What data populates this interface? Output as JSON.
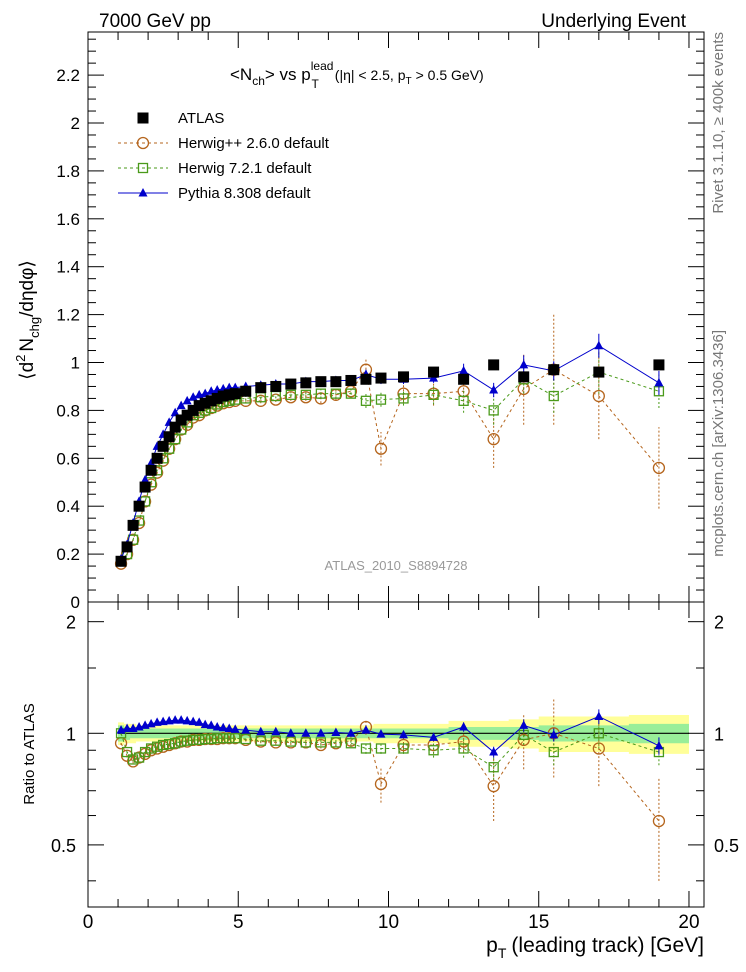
{
  "header": {
    "energy": "7000 GeV pp",
    "process": "Underlying Event"
  },
  "side_labels": {
    "rivet": "Rivet 3.1.10, ≥ 400k events",
    "mcplots": "mcplots.cern.ch [arXiv:1306.3436]"
  },
  "title": {
    "prefix": "<N",
    "sub1": "ch",
    "mid": "> vs p",
    "sup": "lead",
    "sub2": "T",
    "cut1": "(|η| < 2.5, p",
    "sub3": "T",
    "cut2": "> 0.5 GeV)"
  },
  "watermark": "ATLAS_2010_S8894728",
  "ylabel_main": {
    "a": "⟨d",
    "sup": "2",
    "b": "N",
    "sub": "chg",
    "c": "/dηdφ⟩"
  },
  "ylabel_ratio": "Ratio to ATLAS",
  "xlabel": {
    "a": "p",
    "sub": "T",
    "b": "(leading track) [GeV]"
  },
  "chart_data": [
    {
      "type": "scatter",
      "panel": "main",
      "xlim": [
        0,
        20.5
      ],
      "ylim": [
        0,
        2.38
      ],
      "x_ticks": [
        0,
        5,
        10,
        15,
        20
      ],
      "y_ticks": [
        "0",
        "0.2",
        "0.4",
        "0.6",
        "0.8",
        "1",
        "1.2",
        "1.4",
        "1.6",
        "1.8",
        "2",
        "2.2"
      ],
      "x": [
        1.1,
        1.3,
        1.5,
        1.7,
        1.9,
        2.1,
        2.3,
        2.5,
        2.7,
        2.9,
        3.1,
        3.3,
        3.5,
        3.7,
        3.9,
        4.1,
        4.3,
        4.5,
        4.7,
        4.9,
        5.25,
        5.75,
        6.25,
        6.75,
        7.25,
        7.75,
        8.25,
        8.75,
        9.25,
        9.75,
        10.5,
        11.5,
        12.5,
        13.5,
        14.5,
        15.5,
        17.0,
        19.0
      ],
      "series": [
        {
          "name": "ATLAS",
          "color": "#000000",
          "marker": "filled-square",
          "values": [
            0.17,
            0.23,
            0.32,
            0.4,
            0.48,
            0.55,
            0.6,
            0.65,
            0.69,
            0.73,
            0.76,
            0.78,
            0.8,
            0.82,
            0.83,
            0.84,
            0.85,
            0.86,
            0.865,
            0.87,
            0.88,
            0.895,
            0.9,
            0.91,
            0.915,
            0.92,
            0.92,
            0.925,
            0.93,
            0.935,
            0.94,
            0.96,
            0.93,
            0.99,
            0.94,
            0.97,
            0.96,
            0.99
          ]
        },
        {
          "name": "Herwig++ 2.6.0 default",
          "color": "#b5651d",
          "marker": "open-circle",
          "values": [
            0.16,
            0.2,
            0.26,
            0.33,
            0.42,
            0.49,
            0.54,
            0.59,
            0.64,
            0.68,
            0.72,
            0.74,
            0.77,
            0.78,
            0.8,
            0.81,
            0.82,
            0.83,
            0.835,
            0.84,
            0.84,
            0.84,
            0.845,
            0.855,
            0.855,
            0.85,
            0.865,
            0.88,
            0.97,
            0.64,
            0.87,
            0.87,
            0.88,
            0.68,
            0.89,
            0.97,
            0.86,
            0.56
          ],
          "errors": [
            0.005,
            0.005,
            0.005,
            0.005,
            0.005,
            0.005,
            0.005,
            0.005,
            0.005,
            0.005,
            0.005,
            0.005,
            0.005,
            0.005,
            0.005,
            0.005,
            0.005,
            0.005,
            0.005,
            0.005,
            0.01,
            0.01,
            0.01,
            0.015,
            0.015,
            0.02,
            0.02,
            0.03,
            0.05,
            0.07,
            0.04,
            0.05,
            0.06,
            0.12,
            0.15,
            0.23,
            0.18,
            0.17
          ]
        },
        {
          "name": "Herwig 7.2.1 default",
          "color": "#4a9a1a",
          "marker": "open-square",
          "values": [
            0.17,
            0.2,
            0.26,
            0.34,
            0.42,
            0.5,
            0.55,
            0.6,
            0.64,
            0.68,
            0.72,
            0.75,
            0.78,
            0.79,
            0.8,
            0.81,
            0.825,
            0.835,
            0.84,
            0.845,
            0.85,
            0.855,
            0.86,
            0.865,
            0.865,
            0.87,
            0.87,
            0.87,
            0.84,
            0.845,
            0.85,
            0.865,
            0.84,
            0.8,
            0.93,
            0.86,
            0.96,
            0.88
          ],
          "errors": [
            0.005,
            0.005,
            0.005,
            0.005,
            0.005,
            0.005,
            0.005,
            0.005,
            0.005,
            0.005,
            0.005,
            0.005,
            0.005,
            0.005,
            0.005,
            0.005,
            0.005,
            0.005,
            0.005,
            0.005,
            0.01,
            0.01,
            0.01,
            0.01,
            0.015,
            0.02,
            0.02,
            0.02,
            0.03,
            0.03,
            0.03,
            0.04,
            0.05,
            0.06,
            0.06,
            0.07,
            0.09,
            0.07
          ]
        },
        {
          "name": "Pythia 8.308 default",
          "color": "#0000cc",
          "marker": "filled-triangle",
          "values": [
            0.18,
            0.24,
            0.33,
            0.42,
            0.51,
            0.58,
            0.65,
            0.7,
            0.75,
            0.79,
            0.82,
            0.84,
            0.855,
            0.865,
            0.87,
            0.88,
            0.885,
            0.89,
            0.895,
            0.895,
            0.9,
            0.905,
            0.91,
            0.91,
            0.92,
            0.92,
            0.925,
            0.925,
            0.95,
            0.93,
            0.93,
            0.935,
            0.965,
            0.885,
            0.99,
            0.965,
            1.07,
            0.915
          ],
          "errors": [
            0.005,
            0.005,
            0.005,
            0.005,
            0.005,
            0.005,
            0.005,
            0.005,
            0.005,
            0.005,
            0.005,
            0.005,
            0.005,
            0.005,
            0.005,
            0.005,
            0.005,
            0.005,
            0.005,
            0.005,
            0.005,
            0.005,
            0.01,
            0.01,
            0.01,
            0.01,
            0.01,
            0.015,
            0.02,
            0.02,
            0.02,
            0.02,
            0.03,
            0.03,
            0.04,
            0.04,
            0.05,
            0.05
          ]
        }
      ]
    },
    {
      "type": "scatter",
      "panel": "ratio",
      "xlim": [
        0,
        20.5
      ],
      "ylim": [
        0.34,
        2.26
      ],
      "x_ticks": [
        0,
        5,
        10,
        15,
        20
      ],
      "y_ticks": [
        "0.5",
        "1",
        "2"
      ],
      "x": [
        1.1,
        1.3,
        1.5,
        1.7,
        1.9,
        2.1,
        2.3,
        2.5,
        2.7,
        2.9,
        3.1,
        3.3,
        3.5,
        3.7,
        3.9,
        4.1,
        4.3,
        4.5,
        4.7,
        4.9,
        5.25,
        5.75,
        6.25,
        6.75,
        7.25,
        7.75,
        8.25,
        8.75,
        9.25,
        9.75,
        10.5,
        11.5,
        12.5,
        13.5,
        14.5,
        15.5,
        17.0,
        19.0
      ],
      "band_green": [
        0.05,
        0.04,
        0.03,
        0.03,
        0.03,
        0.03,
        0.03,
        0.03,
        0.03,
        0.03,
        0.03,
        0.03,
        0.03,
        0.03,
        0.03,
        0.03,
        0.03,
        0.03,
        0.03,
        0.03,
        0.03,
        0.03,
        0.03,
        0.03,
        0.03,
        0.03,
        0.03,
        0.03,
        0.03,
        0.03,
        0.03,
        0.03,
        0.04,
        0.04,
        0.04,
        0.05,
        0.05,
        0.06
      ],
      "band_yellow": [
        0.07,
        0.06,
        0.06,
        0.05,
        0.05,
        0.05,
        0.05,
        0.05,
        0.05,
        0.05,
        0.05,
        0.05,
        0.05,
        0.05,
        0.05,
        0.05,
        0.05,
        0.05,
        0.05,
        0.05,
        0.05,
        0.05,
        0.05,
        0.05,
        0.05,
        0.05,
        0.05,
        0.05,
        0.05,
        0.06,
        0.06,
        0.06,
        0.08,
        0.08,
        0.09,
        0.11,
        0.11,
        0.12
      ],
      "series": [
        {
          "name": "Herwig++ 2.6.0 default",
          "color": "#b5651d",
          "marker": "open-circle",
          "values": [
            0.94,
            0.87,
            0.84,
            0.86,
            0.88,
            0.9,
            0.91,
            0.92,
            0.93,
            0.94,
            0.95,
            0.95,
            0.96,
            0.96,
            0.965,
            0.965,
            0.965,
            0.97,
            0.97,
            0.97,
            0.96,
            0.95,
            0.945,
            0.945,
            0.945,
            0.93,
            0.94,
            0.955,
            1.04,
            0.73,
            0.93,
            0.93,
            0.95,
            0.72,
            0.96,
            1.0,
            0.91,
            0.58
          ],
          "errors": [
            0.01,
            0.01,
            0.01,
            0.01,
            0.01,
            0.01,
            0.01,
            0.01,
            0.01,
            0.01,
            0.01,
            0.01,
            0.01,
            0.01,
            0.01,
            0.01,
            0.01,
            0.01,
            0.01,
            0.01,
            0.01,
            0.01,
            0.015,
            0.015,
            0.02,
            0.02,
            0.02,
            0.03,
            0.05,
            0.08,
            0.04,
            0.05,
            0.06,
            0.14,
            0.16,
            0.24,
            0.19,
            0.18
          ]
        },
        {
          "name": "Herwig 7.2.1 default",
          "color": "#4a9a1a",
          "marker": "open-square",
          "values": [
            1.0,
            0.89,
            0.85,
            0.86,
            0.89,
            0.91,
            0.92,
            0.93,
            0.935,
            0.94,
            0.95,
            0.955,
            0.96,
            0.96,
            0.965,
            0.965,
            0.97,
            0.97,
            0.97,
            0.97,
            0.965,
            0.955,
            0.955,
            0.95,
            0.945,
            0.945,
            0.945,
            0.94,
            0.91,
            0.91,
            0.91,
            0.9,
            0.91,
            0.81,
            0.99,
            0.89,
            1.0,
            0.89
          ],
          "errors": [
            0.01,
            0.01,
            0.01,
            0.01,
            0.01,
            0.01,
            0.01,
            0.01,
            0.01,
            0.01,
            0.01,
            0.01,
            0.01,
            0.01,
            0.01,
            0.01,
            0.01,
            0.01,
            0.01,
            0.01,
            0.01,
            0.01,
            0.01,
            0.01,
            0.015,
            0.02,
            0.02,
            0.02,
            0.03,
            0.03,
            0.03,
            0.04,
            0.05,
            0.06,
            0.06,
            0.07,
            0.09,
            0.07
          ]
        },
        {
          "name": "Pythia 8.308 default",
          "color": "#0000cc",
          "marker": "filled-triangle",
          "values": [
            1.02,
            1.03,
            1.03,
            1.04,
            1.05,
            1.06,
            1.07,
            1.075,
            1.08,
            1.085,
            1.085,
            1.08,
            1.075,
            1.07,
            1.055,
            1.05,
            1.04,
            1.035,
            1.03,
            1.025,
            1.02,
            1.01,
            1.01,
            1.0,
            1.0,
            1.0,
            1.005,
            1.0,
            1.02,
            0.995,
            0.99,
            0.975,
            1.04,
            0.89,
            1.05,
            0.99,
            1.11,
            0.925
          ],
          "errors": [
            0.005,
            0.005,
            0.005,
            0.005,
            0.005,
            0.005,
            0.005,
            0.005,
            0.005,
            0.005,
            0.005,
            0.005,
            0.005,
            0.005,
            0.005,
            0.005,
            0.005,
            0.005,
            0.005,
            0.005,
            0.005,
            0.005,
            0.01,
            0.01,
            0.01,
            0.01,
            0.01,
            0.015,
            0.02,
            0.02,
            0.02,
            0.02,
            0.03,
            0.03,
            0.04,
            0.04,
            0.05,
            0.05
          ]
        }
      ]
    }
  ]
}
